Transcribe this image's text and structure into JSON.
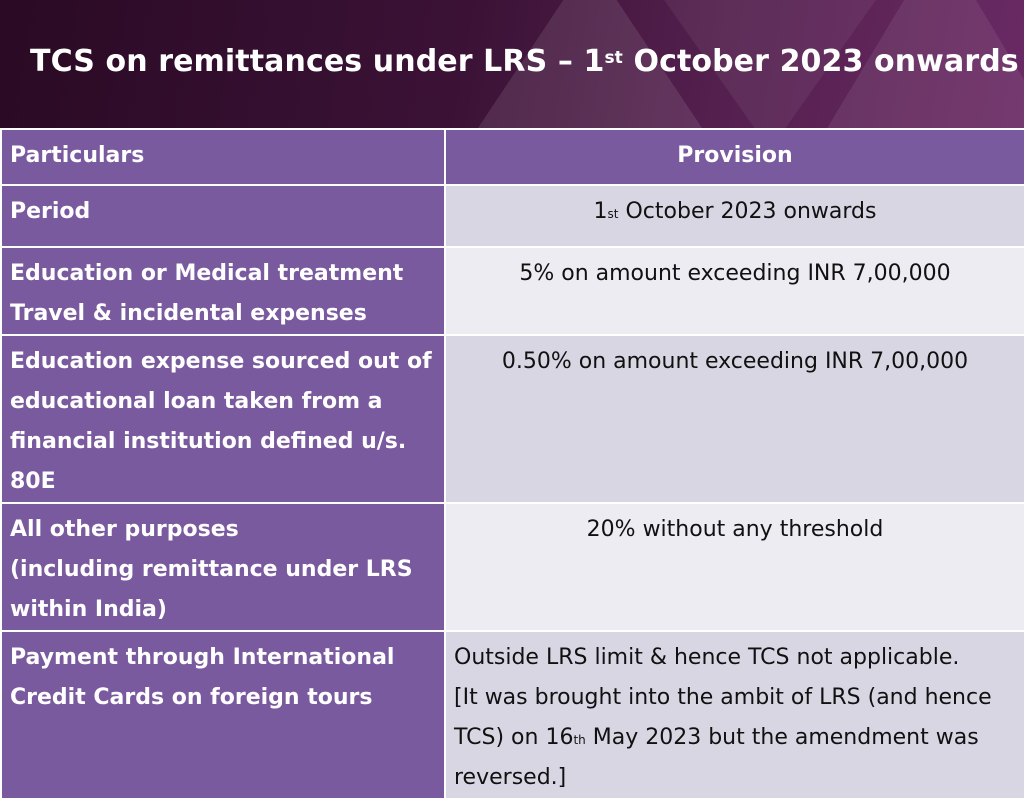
{
  "title": {
    "pre": "TCS on remittances under LRS – 1",
    "sup": "st",
    "post": " October 2023 onwards"
  },
  "table": {
    "headers": [
      "Particulars",
      "Provision"
    ],
    "rows": [
      {
        "label": [
          "Period"
        ],
        "value_pre": "1",
        "value_sup": "st",
        "value_post": " October 2023 onwards"
      },
      {
        "label": [
          "Education or Medical treatment",
          "Travel & incidental expenses"
        ],
        "value": "5% on amount exceeding INR 7,00,000"
      },
      {
        "label": [
          "Education expense sourced out of educational loan taken from a financial institution defined u/s. 80E"
        ],
        "value": "0.50% on amount exceeding INR 7,00,000"
      },
      {
        "label": [
          "All other purposes",
          "(including remittance under LRS within India)"
        ],
        "value": "20% without any threshold"
      },
      {
        "label": [
          "Payment through International Credit Cards on foreign tours"
        ],
        "value_line1": "Outside LRS limit & hence TCS not applicable.",
        "value_line2_pre": "[It was brought into the ambit of LRS (and hence TCS) on 16",
        "value_line2_sup": "th",
        "value_line2_post": " May 2023 but the amendment was reversed.]"
      }
    ]
  }
}
